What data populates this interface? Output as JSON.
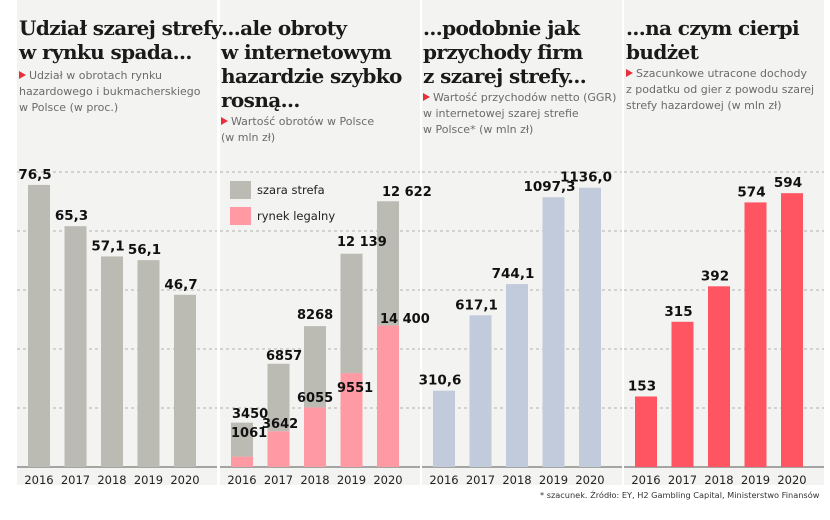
{
  "panels": [
    {
      "title_lines": [
        "Udział szarej strefy",
        "w rynku spada..."
      ],
      "subtitle_lines": [
        "Udział w obrotach rynku",
        "hazardowego i bukmacherskiego",
        "w Polsce (w proc.)"
      ]
    },
    {
      "title_lines": [
        "...ale obroty",
        "w internetowym",
        "hazardzie szybko",
        "rosną..."
      ],
      "subtitle_lines": [
        "Wartość obrotów w Polsce",
        "(w mln zł)"
      ]
    },
    {
      "title_lines": [
        "...podobnie jak",
        "przychody firm",
        "z szarej strefy..."
      ],
      "subtitle_lines": [
        "Wartość przychodów netto (GGR)",
        "w internetowej szarej strefie",
        "w Polsce* (w mln zł)"
      ]
    },
    {
      "title_lines": [
        "...na czym cierpi",
        "budżet"
      ],
      "subtitle_lines": [
        "Szacunkowe utracone dochody",
        "z podatku od gier z powodu szarej",
        "strefy hazardowej (w mln zł)"
      ]
    }
  ],
  "chart_data": [
    {
      "type": "bar",
      "categories": [
        "2016",
        "2017",
        "2018",
        "2019",
        "2020"
      ],
      "values": [
        76.5,
        65.3,
        57.1,
        56.1,
        46.7
      ],
      "value_labels": [
        "76,5",
        "65,3",
        "57,1",
        "56,1",
        "46,7"
      ],
      "title": "Udział szarej strefy w rynku spada...",
      "ylabel": "",
      "ylim": [
        0,
        80
      ],
      "color": "#bbbab3"
    },
    {
      "type": "bar",
      "stacked": true,
      "categories": [
        "2016",
        "2017",
        "2018",
        "2019",
        "2020"
      ],
      "series": [
        {
          "name": "rynek legalny",
          "values": [
            1061,
            3642,
            6055,
            9551,
            14400
          ],
          "value_labels": [
            "1061",
            "3642",
            "6055",
            "9551",
            "14 400"
          ],
          "color": "#ff9aa5"
        },
        {
          "name": "szara strefa",
          "values": [
            3450,
            6857,
            8268,
            12139,
            12622
          ],
          "value_labels": [
            "3450",
            "6857",
            "8268",
            "12 139",
            "12 622"
          ],
          "color": "#bbbab3"
        }
      ],
      "title": "...ale obroty w internetowym hazardzie szybko rosną...",
      "ylim": [
        0,
        30000
      ],
      "legend_position": "top-left"
    },
    {
      "type": "bar",
      "categories": [
        "2016",
        "2017",
        "2018",
        "2019",
        "2020"
      ],
      "values": [
        310.6,
        617.1,
        744.1,
        1097.3,
        1136.0
      ],
      "value_labels": [
        "310,6",
        "617,1",
        "744,1",
        "1097,3",
        "1136,0"
      ],
      "title": "...podobnie jak przychody firm z szarej strefy...",
      "ylim": [
        0,
        1200
      ],
      "color": "#c2cbdc"
    },
    {
      "type": "bar",
      "categories": [
        "2016",
        "2017",
        "2018",
        "2019",
        "2020"
      ],
      "values": [
        153,
        315,
        392,
        574,
        594
      ],
      "value_labels": [
        "153",
        "315",
        "392",
        "574",
        "594"
      ],
      "title": "...na czym cierpi budżet",
      "ylim": [
        0,
        640
      ],
      "color": "#ff5461"
    }
  ],
  "footnote": "* szacunek. Źródło: EY, H2 Gambling Capital, Ministerstwo Finansów"
}
